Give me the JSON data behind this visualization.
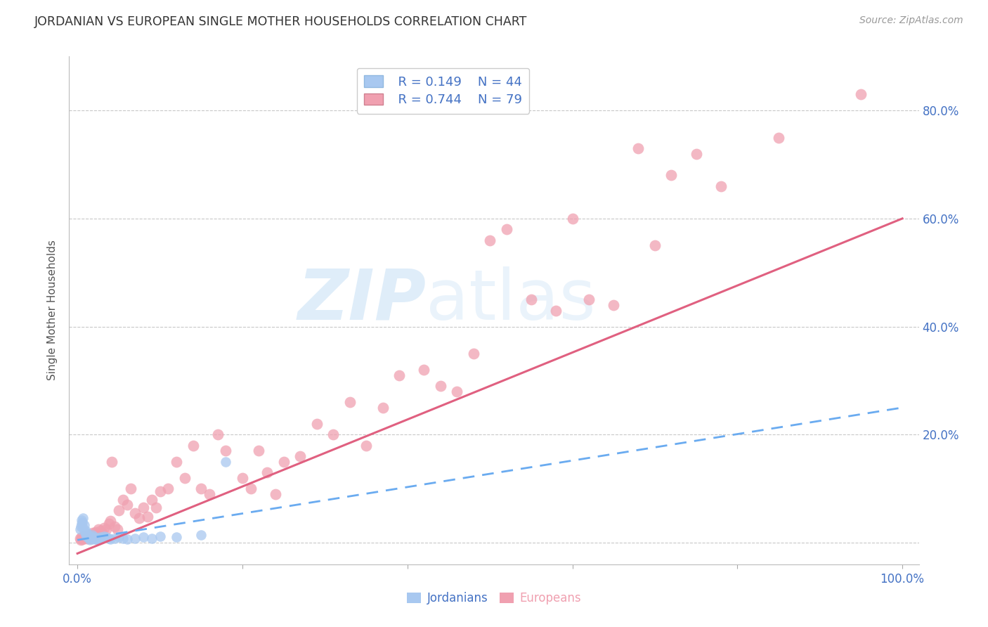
{
  "title": "JORDANIAN VS EUROPEAN SINGLE MOTHER HOUSEHOLDS CORRELATION CHART",
  "source": "Source: ZipAtlas.com",
  "ylabel": "Single Mother Households",
  "watermark_zip": "ZIP",
  "watermark_atlas": "atlas",
  "legend_jordanians_r": "R = 0.149",
  "legend_jordanians_n": "N = 44",
  "legend_europeans_r": "R = 0.744",
  "legend_europeans_n": "N = 79",
  "jordanian_color": "#A8C8F0",
  "european_color": "#F0A0B0",
  "trend_jordanian_color": "#6AABF0",
  "trend_european_color": "#E06080",
  "axis_label_color": "#4472C4",
  "grid_color": "#C8C8C8",
  "background_color": "#FFFFFF",
  "xlim": [
    -0.01,
    1.02
  ],
  "ylim": [
    -0.04,
    0.9
  ],
  "jordanian_x": [
    0.003,
    0.004,
    0.005,
    0.005,
    0.006,
    0.007,
    0.007,
    0.008,
    0.009,
    0.01,
    0.01,
    0.011,
    0.012,
    0.013,
    0.014,
    0.015,
    0.016,
    0.017,
    0.018,
    0.019,
    0.02,
    0.021,
    0.022,
    0.023,
    0.025,
    0.026,
    0.027,
    0.028,
    0.03,
    0.032,
    0.035,
    0.038,
    0.04,
    0.045,
    0.05,
    0.055,
    0.06,
    0.07,
    0.08,
    0.09,
    0.1,
    0.12,
    0.15,
    0.18
  ],
  "jordanian_y": [
    0.025,
    0.03,
    0.035,
    0.042,
    0.038,
    0.028,
    0.045,
    0.032,
    0.02,
    0.015,
    0.022,
    0.018,
    0.01,
    0.012,
    0.008,
    0.005,
    0.012,
    0.01,
    0.015,
    0.008,
    0.006,
    0.01,
    0.008,
    0.006,
    0.005,
    0.008,
    0.006,
    0.01,
    0.008,
    0.012,
    0.01,
    0.008,
    0.006,
    0.008,
    0.01,
    0.008,
    0.006,
    0.008,
    0.01,
    0.008,
    0.012,
    0.01,
    0.015,
    0.15
  ],
  "european_x": [
    0.003,
    0.004,
    0.005,
    0.006,
    0.007,
    0.008,
    0.009,
    0.01,
    0.011,
    0.012,
    0.013,
    0.014,
    0.015,
    0.016,
    0.017,
    0.018,
    0.019,
    0.02,
    0.022,
    0.025,
    0.028,
    0.03,
    0.032,
    0.035,
    0.038,
    0.04,
    0.042,
    0.045,
    0.048,
    0.05,
    0.055,
    0.06,
    0.065,
    0.07,
    0.075,
    0.08,
    0.085,
    0.09,
    0.095,
    0.1,
    0.11,
    0.12,
    0.13,
    0.14,
    0.15,
    0.16,
    0.17,
    0.18,
    0.2,
    0.21,
    0.22,
    0.23,
    0.24,
    0.25,
    0.27,
    0.29,
    0.31,
    0.33,
    0.35,
    0.37,
    0.39,
    0.42,
    0.44,
    0.46,
    0.48,
    0.5,
    0.52,
    0.55,
    0.58,
    0.6,
    0.62,
    0.65,
    0.68,
    0.7,
    0.72,
    0.75,
    0.78,
    0.85,
    0.95
  ],
  "european_y": [
    0.008,
    0.005,
    0.01,
    0.006,
    0.008,
    0.012,
    0.01,
    0.008,
    0.012,
    0.01,
    0.008,
    0.015,
    0.01,
    0.012,
    0.008,
    0.015,
    0.018,
    0.012,
    0.02,
    0.025,
    0.022,
    0.018,
    0.028,
    0.025,
    0.035,
    0.04,
    0.15,
    0.03,
    0.025,
    0.06,
    0.08,
    0.07,
    0.1,
    0.055,
    0.045,
    0.065,
    0.048,
    0.08,
    0.065,
    0.095,
    0.1,
    0.15,
    0.12,
    0.18,
    0.1,
    0.09,
    0.2,
    0.17,
    0.12,
    0.1,
    0.17,
    0.13,
    0.09,
    0.15,
    0.16,
    0.22,
    0.2,
    0.26,
    0.18,
    0.25,
    0.31,
    0.32,
    0.29,
    0.28,
    0.35,
    0.56,
    0.58,
    0.45,
    0.43,
    0.6,
    0.45,
    0.44,
    0.73,
    0.55,
    0.68,
    0.72,
    0.66,
    0.75,
    0.83
  ],
  "trend_european_x0": 0.0,
  "trend_european_y0": -0.02,
  "trend_european_x1": 1.0,
  "trend_european_y1": 0.6,
  "trend_jordanian_x0": 0.0,
  "trend_jordanian_y0": 0.005,
  "trend_jordanian_x1": 1.0,
  "trend_jordanian_y1": 0.25
}
